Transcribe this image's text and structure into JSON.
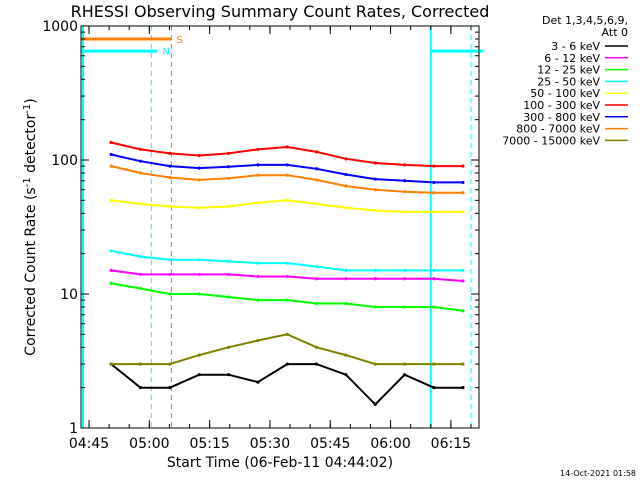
{
  "chart_data": {
    "type": "line",
    "title": "RHESSI Observing Summary Count Rates, Corrected",
    "xlabel": "Start Time (06-Feb-11 04:44:02)",
    "ylabel_main": "Corrected Count Rate (s",
    "ylabel_sup1": "-1",
    "ylabel_mid": " detector",
    "ylabel_sup2": "-1",
    "ylabel_end": ")",
    "yscale": "log",
    "ylim": [
      1,
      1000
    ],
    "xlim_minutes": [
      -2,
      97
    ],
    "x_ticks": [
      {
        "label": "04:45",
        "min": 0
      },
      {
        "label": "05:00",
        "min": 15
      },
      {
        "label": "05:15",
        "min": 30
      },
      {
        "label": "05:30",
        "min": 45
      },
      {
        "label": "05:45",
        "min": 60
      },
      {
        "label": "06:00",
        "min": 75
      },
      {
        "label": "06:15",
        "min": 90
      }
    ],
    "y_ticks": [
      {
        "label": "1",
        "value": 1
      },
      {
        "label": "10",
        "value": 10
      },
      {
        "label": "100",
        "value": 100
      },
      {
        "label": "1000",
        "value": 1000
      }
    ],
    "legend_header": [
      "Det 1,3,4,5,6,9,",
      "Att 0"
    ],
    "legend_position": "right",
    "series": [
      {
        "name": "3 - 6 keV",
        "color": "#000000",
        "values": [
          3,
          2,
          2,
          2.5,
          2.5,
          2.2,
          3,
          3,
          2.5,
          1.5,
          2.5,
          2,
          2
        ]
      },
      {
        "name": "6 - 12 keV",
        "color": "#ff00ff",
        "values": [
          15,
          14,
          14,
          14,
          14,
          13.5,
          13.5,
          13,
          13,
          13,
          13,
          13,
          12.5
        ]
      },
      {
        "name": "12 - 25 keV",
        "color": "#00ff00",
        "values": [
          12,
          11,
          10,
          10,
          9.5,
          9,
          9,
          8.5,
          8.5,
          8,
          8,
          8,
          7.5
        ]
      },
      {
        "name": "25 - 50 keV",
        "color": "#00ffff",
        "values": [
          21,
          19,
          18,
          18,
          17.5,
          17,
          17,
          16,
          15,
          15,
          15,
          15,
          15
        ]
      },
      {
        "name": "50 - 100 keV",
        "color": "#ffff00",
        "values": [
          50,
          47,
          45,
          44,
          45,
          48,
          50,
          47,
          44,
          42,
          41,
          41,
          41
        ]
      },
      {
        "name": "100 - 300 keV",
        "color": "#ff0000",
        "values": [
          135,
          120,
          112,
          108,
          112,
          120,
          125,
          115,
          102,
          95,
          92,
          90,
          90
        ]
      },
      {
        "name": "300 - 800 keV",
        "color": "#0000ff",
        "values": [
          110,
          98,
          90,
          87,
          89,
          92,
          92,
          86,
          78,
          72,
          70,
          68,
          68
        ]
      },
      {
        "name": "800 - 7000 keV",
        "color": "#ff8000",
        "values": [
          90,
          80,
          74,
          71,
          73,
          77,
          77,
          71,
          64,
          60,
          58,
          57,
          57
        ]
      },
      {
        "name": "7000 - 15000 keV",
        "color": "#808000",
        "values": [
          3,
          3,
          3,
          3.5,
          4,
          4.5,
          5,
          4,
          3.5,
          3,
          3,
          3,
          3
        ]
      }
    ],
    "series_x_minutes": [
      5.5,
      12.8,
      20.1,
      27.4,
      34.7,
      42,
      49.3,
      56.6,
      63.9,
      71.2,
      78.5,
      85.8,
      93
    ],
    "flag_S": {
      "label": "S",
      "color": "#ff8000",
      "value": 800,
      "x_start": -2,
      "x_end": 20.5
    },
    "flag_N": {
      "label": "N",
      "color": "#00ffff",
      "value": 650,
      "x_start": -2,
      "x_end": 17,
      "x2_start": 85,
      "x2_end": 98
    },
    "vlines": [
      {
        "x": -1.5,
        "color": "#00ffff",
        "style": "solid"
      },
      {
        "x": 15.5,
        "color": "#00ffff",
        "style": "dashed"
      },
      {
        "x": 20.5,
        "color": "#ff8000",
        "style": "dashed"
      },
      {
        "x": 85,
        "color": "#00ffff",
        "style": "solid"
      },
      {
        "x": 95,
        "color": "#00ffff",
        "style": "dashed"
      }
    ],
    "footer_date": "14-Oct-2021 01:58"
  }
}
